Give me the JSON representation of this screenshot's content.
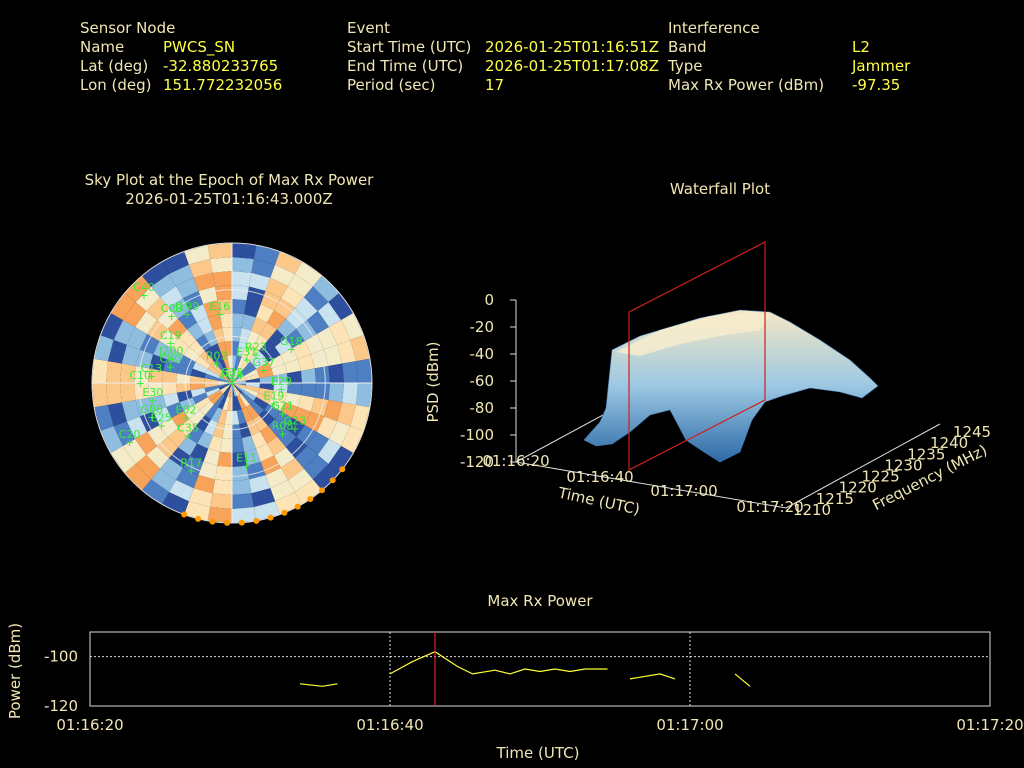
{
  "header": {
    "sensor": {
      "heading": "Sensor Node",
      "rows": [
        {
          "label": "Name",
          "value": "PWCS_SN"
        },
        {
          "label": "Lat (deg)",
          "value": "-32.880233765"
        },
        {
          "label": "Lon (deg)",
          "value": "151.772232056"
        }
      ]
    },
    "event": {
      "heading": "Event",
      "rows": [
        {
          "label": "Start Time (UTC)",
          "value": "2026-01-25T01:16:51Z"
        },
        {
          "label": "End Time (UTC)",
          "value": "2026-01-25T01:17:08Z"
        },
        {
          "label": "Period (sec)",
          "value": "17"
        }
      ]
    },
    "interference": {
      "heading": "Interference",
      "rows": [
        {
          "label": "Band",
          "value": "L2"
        },
        {
          "label": "Type",
          "value": "Jammer"
        },
        {
          "label": "Max Rx Power (dBm)",
          "value": "-97.35"
        }
      ]
    }
  },
  "chart_data": [
    {
      "type": "scatter",
      "title": "Sky Plot at the Epoch of Max Rx Power",
      "subtitle": "2026-01-25T01:16:43.000Z",
      "satellites": [
        {
          "prn": "G28",
          "az": 2,
          "el": 88
        },
        {
          "prn": "E31",
          "az": 32,
          "el": 72
        },
        {
          "prn": "R23",
          "az": 40,
          "el": 66
        },
        {
          "prn": "G37",
          "az": 68,
          "el": 68
        },
        {
          "prn": "G18",
          "az": 60,
          "el": 46
        },
        {
          "prn": "R03",
          "az": 322,
          "el": 74
        },
        {
          "prn": "E16",
          "az": 350,
          "el": 45
        },
        {
          "prn": "J199",
          "az": 327,
          "el": 37
        },
        {
          "prn": "C08",
          "az": 318,
          "el": 32
        },
        {
          "prn": "C19",
          "az": 303,
          "el": 43
        },
        {
          "prn": "J200",
          "az": 292,
          "el": 48
        },
        {
          "prn": "C60",
          "az": 285,
          "el": 49
        },
        {
          "prn": "C40",
          "az": 315,
          "el": 10
        },
        {
          "prn": "C13",
          "az": 275,
          "el": 38
        },
        {
          "prn": "C10",
          "az": 270,
          "el": 31
        },
        {
          "prn": "E30",
          "az": 258,
          "el": 38
        },
        {
          "prn": "G08",
          "az": 247,
          "el": 34
        },
        {
          "prn": "E25",
          "az": 239,
          "el": 37
        },
        {
          "prn": "E02",
          "az": 233,
          "el": 53
        },
        {
          "prn": "C35",
          "az": 220,
          "el": 46
        },
        {
          "prn": "R17",
          "az": 205,
          "el": 28
        },
        {
          "prn": "C20",
          "az": 240,
          "el": 14
        },
        {
          "prn": "R24",
          "az": 180,
          "el": 90
        },
        {
          "prn": "E11",
          "az": 170,
          "el": 36
        },
        {
          "prn": "G23",
          "az": 126,
          "el": 40
        },
        {
          "prn": "G21",
          "az": 121,
          "el": 52
        },
        {
          "prn": "E19",
          "az": 116,
          "el": 60
        },
        {
          "prn": "E29",
          "az": 97,
          "el": 58
        },
        {
          "prn": "R08",
          "az": 135,
          "el": 44
        }
      ],
      "rlim": [
        0,
        90
      ]
    },
    {
      "type": "area",
      "title": "Waterfall Plot",
      "xlabel": "Time (UTC)",
      "ylabel": "Frequency (MHz)",
      "zlabel": "PSD (dBm)",
      "x_ticks": [
        "01:16:20",
        "01:16:40",
        "01:17:00",
        "01:17:20"
      ],
      "y_ticks": [
        "1210",
        "1215",
        "1220",
        "1225",
        "1230",
        "1235",
        "1240",
        "1245"
      ],
      "z_ticks": [
        "0",
        "-20",
        "-40",
        "-60",
        "-80",
        "-100",
        "-120"
      ],
      "zlim": [
        -120,
        0
      ],
      "marker_time": "01:16:43"
    },
    {
      "type": "line",
      "title": "Max Rx Power",
      "xlabel": "Time (UTC)",
      "ylabel": "Power (dBm)",
      "x_ticks": [
        "01:16:20",
        "01:16:40",
        "01:17:00",
        "01:17:20"
      ],
      "y_ticks": [
        "-100",
        "-120"
      ],
      "xlim": [
        0,
        60
      ],
      "ylim": [
        -120,
        -90
      ],
      "marker_time_sec": 23,
      "series": [
        {
          "segments": [
            {
              "x": [
                14,
                15.5,
                16.5
              ],
              "y": [
                -111,
                -112,
                -111
              ]
            },
            {
              "x": [
                20,
                21.5,
                23,
                24.5,
                25.5,
                27,
                28,
                29,
                30,
                31,
                32,
                33,
                34.5
              ],
              "y": [
                -107,
                -102,
                -98,
                -104,
                -107,
                -105.5,
                -107,
                -105,
                -106,
                -105,
                -106,
                -105,
                -105
              ]
            },
            {
              "x": [
                36,
                38,
                39
              ],
              "y": [
                -109,
                -107,
                -109
              ]
            },
            {
              "x": [
                43,
                44
              ],
              "y": [
                -107,
                -112
              ]
            }
          ]
        }
      ]
    }
  ]
}
